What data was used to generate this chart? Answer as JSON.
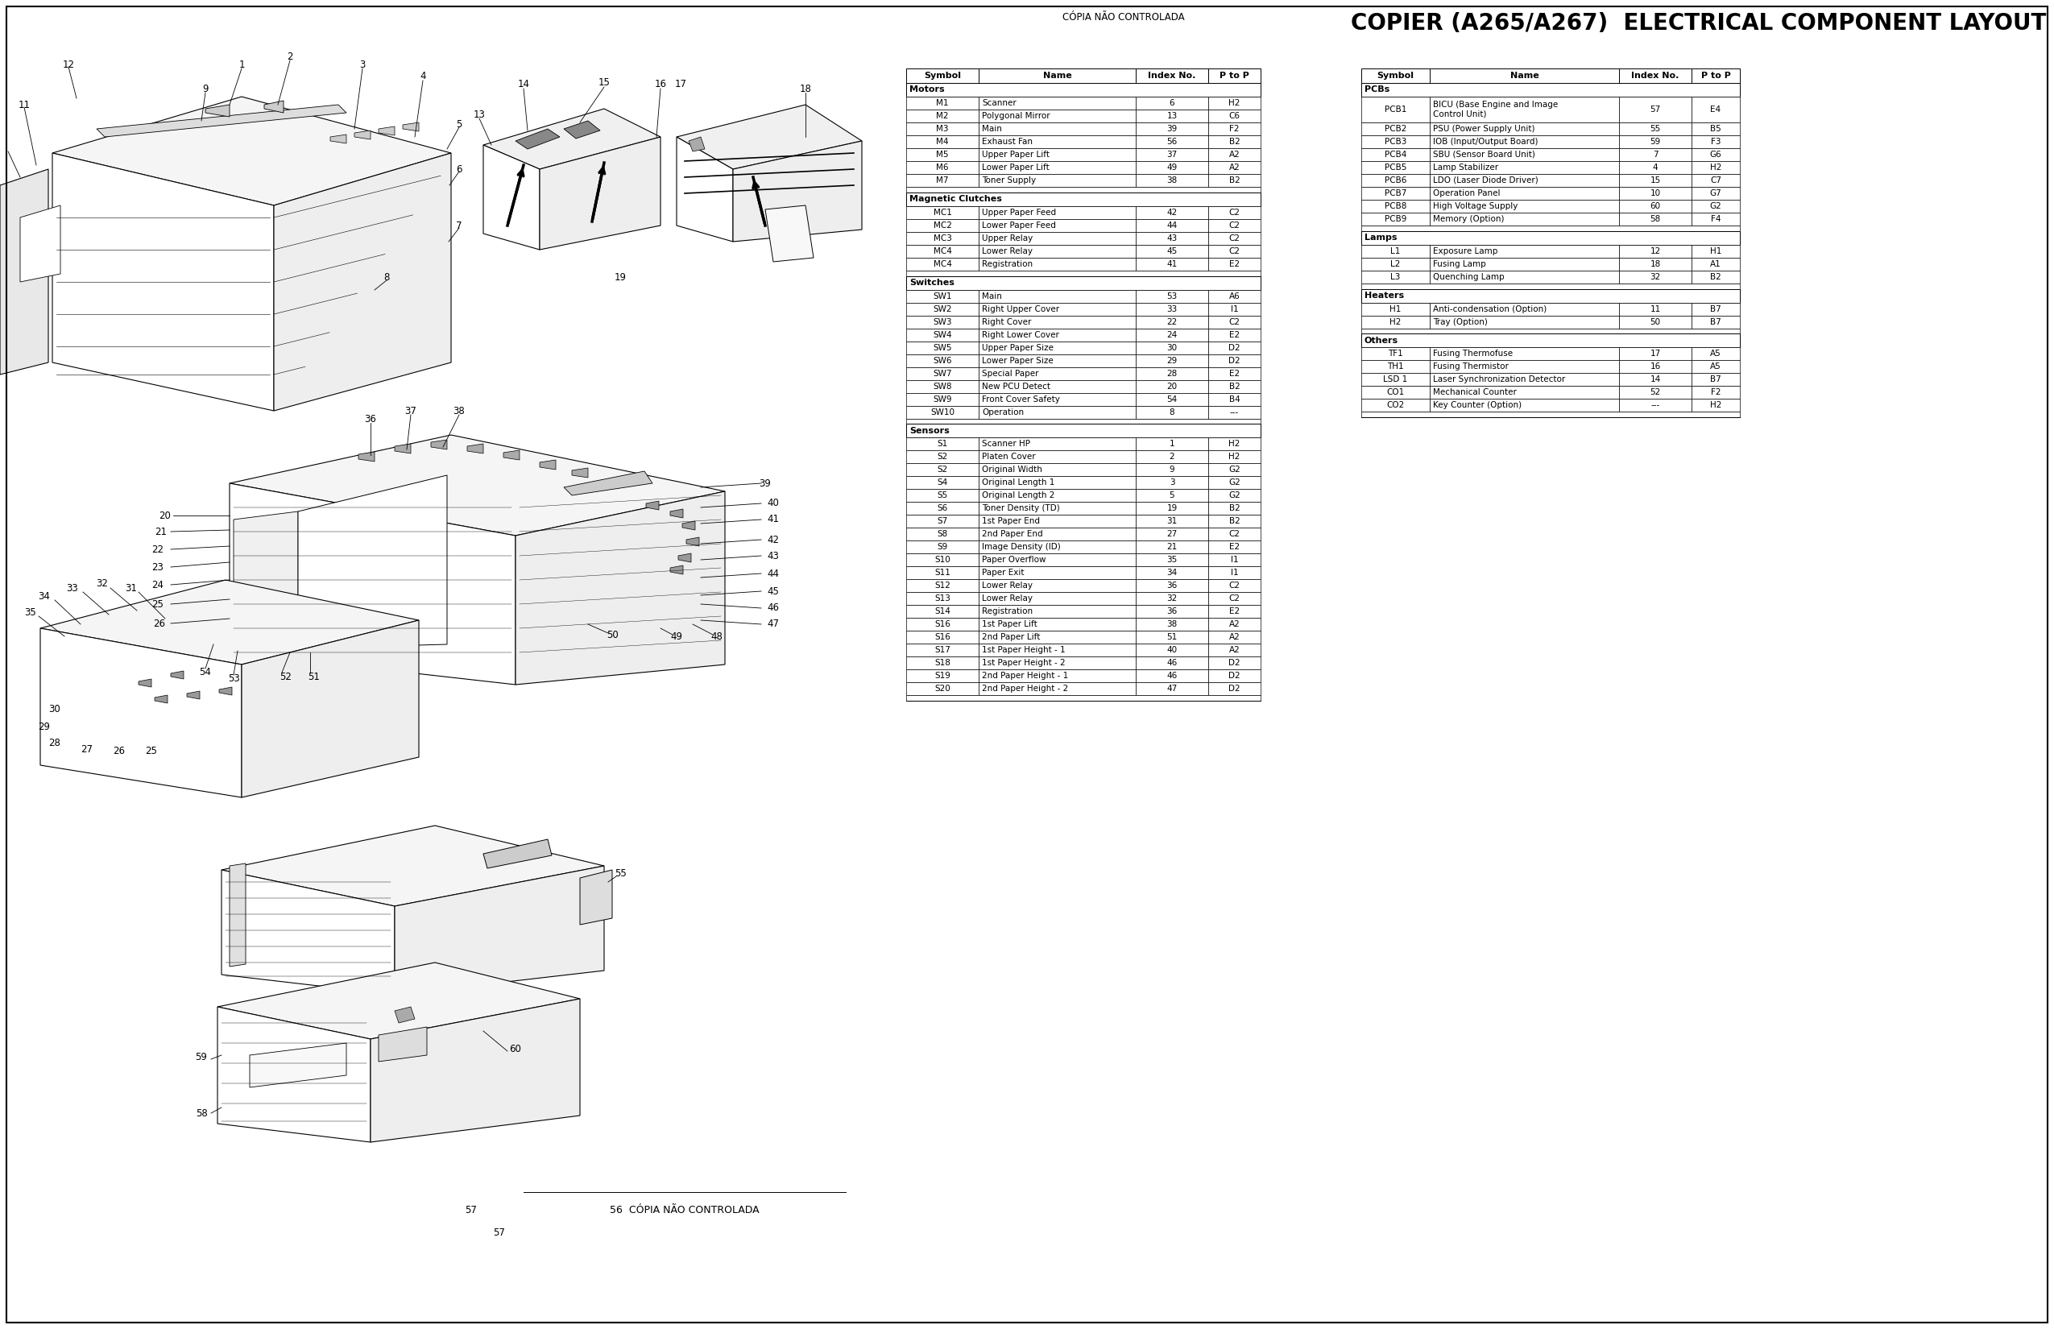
{
  "title": "COPIER (A265/A267)  ELECTRICAL COMPONENT LAYOUT",
  "subtitle_top": "CÓPIA NÃO CONTROLADA",
  "subtitle_bottom": "56 CÓPIA NÃO CONTROLADA",
  "bg_color": "#ffffff",
  "title_fontsize": 20,
  "table1": {
    "col_headers": [
      "Symbol",
      "Name",
      "Index No.",
      "P to P"
    ],
    "sections": [
      {
        "section_name": "Motors",
        "rows": [
          [
            "M1",
            "Scanner",
            "6",
            "H2"
          ],
          [
            "M2",
            "Polygonal Mirror",
            "13",
            "C6"
          ],
          [
            "M3",
            "Main",
            "39",
            "F2"
          ],
          [
            "M4",
            "Exhaust Fan",
            "56",
            "B2"
          ],
          [
            "M5",
            "Upper Paper Lift",
            "37",
            "A2"
          ],
          [
            "M6",
            "Lower Paper Lift",
            "49",
            "A2"
          ],
          [
            "M7",
            "Toner Supply",
            "38",
            "B2"
          ]
        ]
      },
      {
        "section_name": "Magnetic Clutches",
        "rows": [
          [
            "MC1",
            "Upper Paper Feed",
            "42",
            "C2"
          ],
          [
            "MC2",
            "Lower Paper Feed",
            "44",
            "C2"
          ],
          [
            "MC3",
            "Upper Relay",
            "43",
            "C2"
          ],
          [
            "MC4",
            "Lower Relay",
            "45",
            "C2"
          ],
          [
            "MC4",
            "Registration",
            "41",
            "E2"
          ]
        ]
      },
      {
        "section_name": "Switches",
        "rows": [
          [
            "SW1",
            "Main",
            "53",
            "A6"
          ],
          [
            "SW2",
            "Right Upper Cover",
            "33",
            "I1"
          ],
          [
            "SW3",
            "Right Cover",
            "22",
            "C2"
          ],
          [
            "SW4",
            "Right Lower Cover",
            "24",
            "E2"
          ],
          [
            "SW5",
            "Upper Paper Size",
            "30",
            "D2"
          ],
          [
            "SW6",
            "Lower Paper Size",
            "29",
            "D2"
          ],
          [
            "SW7",
            "Special Paper",
            "28",
            "E2"
          ],
          [
            "SW8",
            "New PCU Detect",
            "20",
            "B2"
          ],
          [
            "SW9",
            "Front Cover Safety",
            "54",
            "B4"
          ],
          [
            "SW10",
            "Operation",
            "8",
            "---"
          ]
        ]
      },
      {
        "section_name": "Sensors",
        "rows": [
          [
            "S1",
            "Scanner HP",
            "1",
            "H2"
          ],
          [
            "S2",
            "Platen Cover",
            "2",
            "H2"
          ],
          [
            "S2",
            "Original Width",
            "9",
            "G2"
          ],
          [
            "S4",
            "Original Length 1",
            "3",
            "G2"
          ],
          [
            "S5",
            "Original Length 2",
            "5",
            "G2"
          ],
          [
            "S6",
            "Toner Density (TD)",
            "19",
            "B2"
          ],
          [
            "S7",
            "1st Paper End",
            "31",
            "B2"
          ],
          [
            "S8",
            "2nd Paper End",
            "27",
            "C2"
          ],
          [
            "S9",
            "Image Density (ID)",
            "21",
            "E2"
          ],
          [
            "S10",
            "Paper Overflow",
            "35",
            "I1"
          ],
          [
            "S11",
            "Paper Exit",
            "34",
            "I1"
          ],
          [
            "S12",
            "Lower Relay",
            "36",
            "C2"
          ],
          [
            "S13",
            "Lower Relay",
            "32",
            "C2"
          ],
          [
            "S14",
            "Registration",
            "36",
            "E2"
          ],
          [
            "S16",
            "1st Paper Lift",
            "38",
            "A2"
          ],
          [
            "S16",
            "2nd Paper Lift",
            "51",
            "A2"
          ],
          [
            "S17",
            "1st Paper Height - 1",
            "40",
            "A2"
          ],
          [
            "S18",
            "1st Paper Height - 2",
            "46",
            "D2"
          ],
          [
            "S19",
            "2nd Paper Height - 1",
            "46",
            "D2"
          ],
          [
            "S20",
            "2nd Paper Height - 2",
            "47",
            "D2"
          ]
        ]
      }
    ]
  },
  "table2": {
    "col_headers": [
      "Symbol",
      "Name",
      "Index No.",
      "P to P"
    ],
    "sections": [
      {
        "section_name": "PCBs",
        "rows": [
          [
            "PCB1",
            "BICU (Base Engine and Image\nControl Unit)",
            "57",
            "E4"
          ],
          [
            "PCB2",
            "PSU (Power Supply Unit)",
            "55",
            "B5"
          ],
          [
            "PCB3",
            "IOB (Input/Output Board)",
            "59",
            "F3"
          ],
          [
            "PCB4",
            "SBU (Sensor Board Unit)",
            "7",
            "G6"
          ],
          [
            "PCB5",
            "Lamp Stabilizer",
            "4",
            "H2"
          ],
          [
            "PCB6",
            "LDO (Laser Diode Driver)",
            "15",
            "C7"
          ],
          [
            "PCB7",
            "Operation Panel",
            "10",
            "G7"
          ],
          [
            "PCB8",
            "High Voltage Supply",
            "60",
            "G2"
          ],
          [
            "PCB9",
            "Memory (Option)",
            "58",
            "F4"
          ]
        ]
      },
      {
        "section_name": "Lamps",
        "rows": [
          [
            "L1",
            "Exposure Lamp",
            "12",
            "H1"
          ],
          [
            "L2",
            "Fusing Lamp",
            "18",
            "A1"
          ],
          [
            "L3",
            "Quenching Lamp",
            "32",
            "B2"
          ]
        ]
      },
      {
        "section_name": "Heaters",
        "rows": [
          [
            "H1",
            "Anti-condensation (Option)",
            "11",
            "B7"
          ],
          [
            "H2",
            "Tray (Option)",
            "50",
            "B7"
          ]
        ]
      },
      {
        "section_name": "Others",
        "rows": [
          [
            "TF1",
            "Fusing Thermofuse",
            "17",
            "A5"
          ],
          [
            "TH1",
            "Fusing Thermistor",
            "16",
            "A5"
          ],
          [
            "LSD 1",
            "Laser Synchronization Detector",
            "14",
            "B7"
          ],
          [
            "CO1",
            "Mechanical Counter",
            "52",
            "F2"
          ],
          [
            "CO2",
            "Key Counter (Option)",
            "---",
            "H2"
          ]
        ]
      }
    ]
  }
}
